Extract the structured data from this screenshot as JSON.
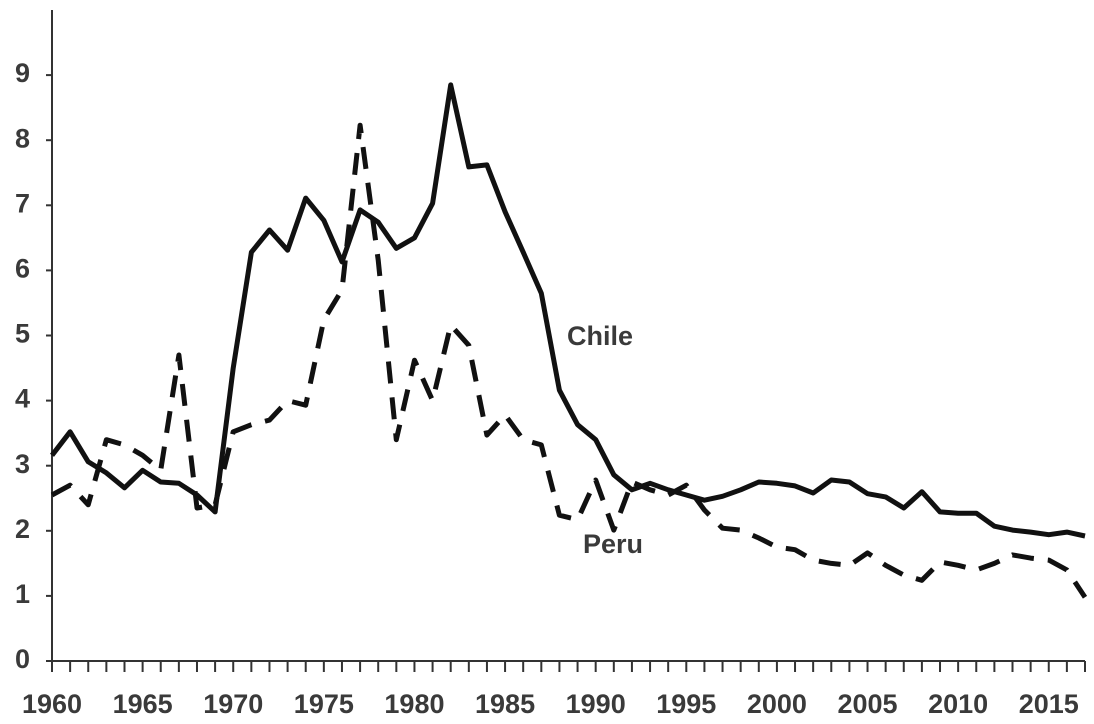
{
  "chart_data": {
    "type": "line",
    "x": [
      1960,
      1961,
      1962,
      1963,
      1964,
      1965,
      1966,
      1967,
      1968,
      1969,
      1970,
      1971,
      1972,
      1973,
      1974,
      1975,
      1976,
      1977,
      1978,
      1979,
      1980,
      1981,
      1982,
      1983,
      1984,
      1985,
      1986,
      1987,
      1988,
      1989,
      1990,
      1991,
      1992,
      1993,
      1994,
      1995,
      1996,
      1997,
      1998,
      1999,
      2000,
      2001,
      2002,
      2003,
      2004,
      2005,
      2006,
      2007,
      2008,
      2009,
      2010,
      2011,
      2012,
      2013,
      2014,
      2015,
      2016,
      2017
    ],
    "series": [
      {
        "name": "Chile",
        "color": "#111111",
        "dash": false,
        "values": [
          3.16,
          3.52,
          3.06,
          2.89,
          2.66,
          2.93,
          2.75,
          2.73,
          2.55,
          2.29,
          4.5,
          6.28,
          6.62,
          6.31,
          7.11,
          6.77,
          6.13,
          6.93,
          6.74,
          6.34,
          6.5,
          7.03,
          8.85,
          7.59,
          7.62,
          6.9,
          6.28,
          5.65,
          4.16,
          3.63,
          3.4,
          2.86,
          2.63,
          2.73,
          2.63,
          2.55,
          2.47,
          2.53,
          2.63,
          2.75,
          2.73,
          2.69,
          2.58,
          2.78,
          2.75,
          2.57,
          2.52,
          2.35,
          2.6,
          2.29,
          2.27,
          2.27,
          2.07,
          2.01,
          1.98,
          1.94,
          1.98,
          1.92
        ]
      },
      {
        "name": "Peru",
        "color": "#111111",
        "dash": true,
        "values": [
          2.55,
          2.7,
          2.4,
          3.4,
          3.32,
          3.16,
          2.93,
          4.7,
          2.35,
          2.4,
          3.52,
          3.63,
          3.7,
          4.0,
          3.93,
          5.24,
          5.7,
          8.23,
          6.16,
          3.4,
          4.62,
          4.0,
          5.16,
          4.85,
          3.47,
          3.78,
          3.4,
          3.32,
          2.24,
          2.17,
          2.78,
          2.01,
          2.75,
          2.63,
          2.55,
          2.7,
          2.32,
          2.04,
          2.01,
          1.89,
          1.75,
          1.71,
          1.55,
          1.5,
          1.47,
          1.66,
          1.47,
          1.32,
          1.24,
          1.52,
          1.47,
          1.4,
          1.5,
          1.63,
          1.58,
          1.55,
          1.4,
          0.98
        ]
      }
    ],
    "xlim": [
      1960,
      2017
    ],
    "xticks": [
      1960,
      1965,
      1970,
      1975,
      1980,
      1985,
      1990,
      1995,
      2000,
      2005,
      2010,
      2015
    ],
    "ylim": [
      0,
      10
    ],
    "yticks": [
      0,
      1,
      2,
      3,
      4,
      5,
      6,
      7,
      8,
      9
    ],
    "grid": false
  }
}
